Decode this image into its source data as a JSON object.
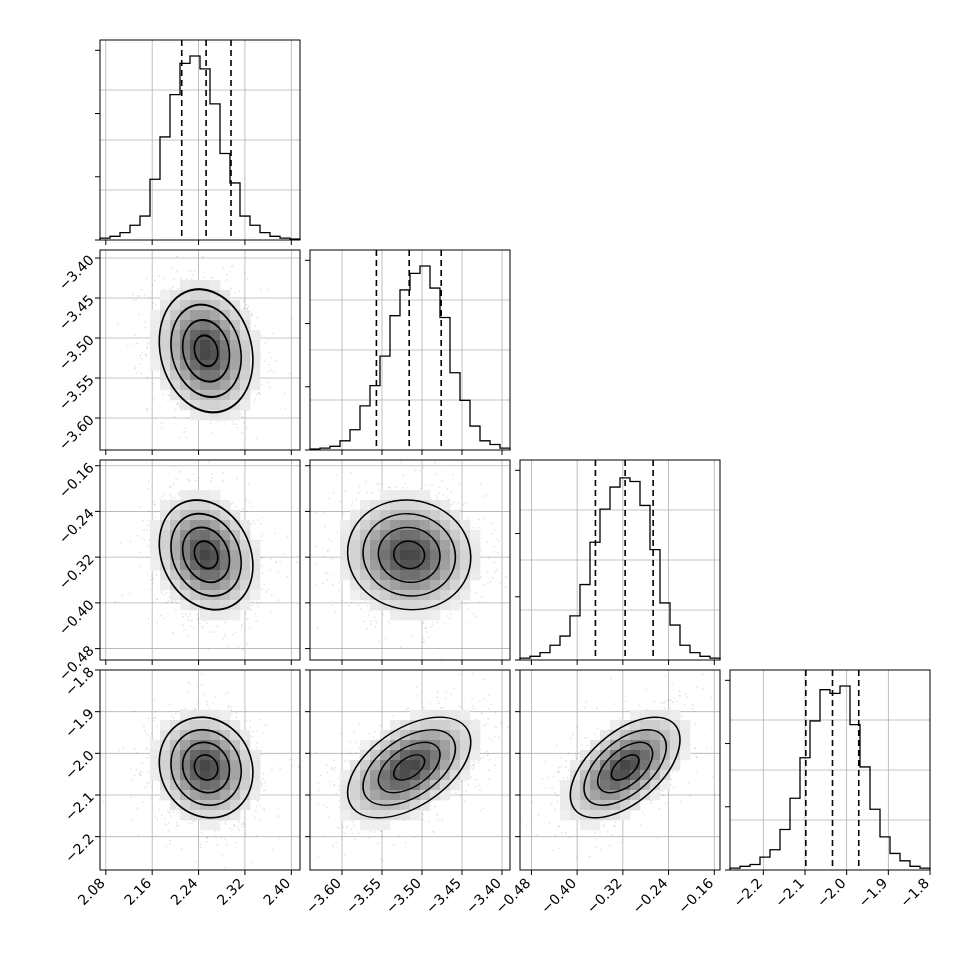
{
  "chart_data": {
    "type": "corner",
    "grid": true,
    "parameters": [
      {
        "index": 0,
        "median": 2.253,
        "quantiles": [
          2.211,
          2.253,
          2.296
        ],
        "range": [
          2.07,
          2.415
        ],
        "ticks": [
          2.08,
          2.16,
          2.24,
          2.32,
          2.4
        ],
        "tick_labels": [
          "2.08",
          "2.16",
          "2.24",
          "2.32",
          "2.40"
        ],
        "hist": [
          0.01,
          0.02,
          0.04,
          0.08,
          0.13,
          0.33,
          0.56,
          0.79,
          0.96,
          1.0,
          0.93,
          0.74,
          0.47,
          0.31,
          0.13,
          0.08,
          0.04,
          0.02,
          0.01,
          0.005
        ]
      },
      {
        "index": 1,
        "median": -3.516,
        "quantiles": [
          -3.557,
          -3.516,
          -3.476
        ],
        "range": [
          -3.64,
          -3.39
        ],
        "ticks": [
          -3.6,
          -3.55,
          -3.5,
          -3.45,
          -3.4
        ],
        "tick_labels": [
          "−3.60",
          "−3.55",
          "−3.50",
          "−3.45",
          "−3.40"
        ],
        "hist": [
          0.005,
          0.01,
          0.02,
          0.05,
          0.11,
          0.24,
          0.35,
          0.51,
          0.73,
          0.87,
          0.96,
          1.0,
          0.88,
          0.72,
          0.42,
          0.27,
          0.13,
          0.05,
          0.03,
          0.01
        ]
      },
      {
        "index": 2,
        "median": -0.316,
        "quantiles": [
          -0.368,
          -0.316,
          -0.267
        ],
        "range": [
          -0.5,
          -0.15
        ],
        "ticks": [
          -0.48,
          -0.4,
          -0.32,
          -0.24,
          -0.16
        ],
        "tick_labels": [
          "−0.48",
          "−0.40",
          "−0.32",
          "−0.24",
          "−0.16"
        ],
        "hist": [
          0.01,
          0.02,
          0.04,
          0.08,
          0.13,
          0.24,
          0.41,
          0.64,
          0.82,
          0.94,
          0.99,
          0.97,
          0.84,
          0.6,
          0.31,
          0.19,
          0.08,
          0.04,
          0.02,
          0.01
        ]
      },
      {
        "index": 3,
        "median": -2.034,
        "quantiles": [
          -2.098,
          -2.034,
          -1.971
        ],
        "range": [
          -2.28,
          -1.8
        ],
        "ticks": [
          -2.2,
          -2.1,
          -2.0,
          -1.9,
          -1.8
        ],
        "tick_labels": [
          "−2.2",
          "−2.1",
          "−2.0",
          "−1.9",
          "−1.8"
        ],
        "hist": [
          0.01,
          0.02,
          0.03,
          0.07,
          0.11,
          0.22,
          0.39,
          0.61,
          0.81,
          0.98,
          0.96,
          1.0,
          0.79,
          0.56,
          0.33,
          0.18,
          0.09,
          0.05,
          0.02,
          0.01
        ]
      }
    ],
    "correlations": {
      "1-0": -0.15,
      "2-0": -0.2,
      "2-1": -0.05,
      "3-0": -0.1,
      "3-1": 0.5,
      "3-2": 0.55
    },
    "contour_levels": [
      0.5,
      1.0,
      1.5,
      2.0
    ],
    "quantile_line_style": "dashed"
  }
}
